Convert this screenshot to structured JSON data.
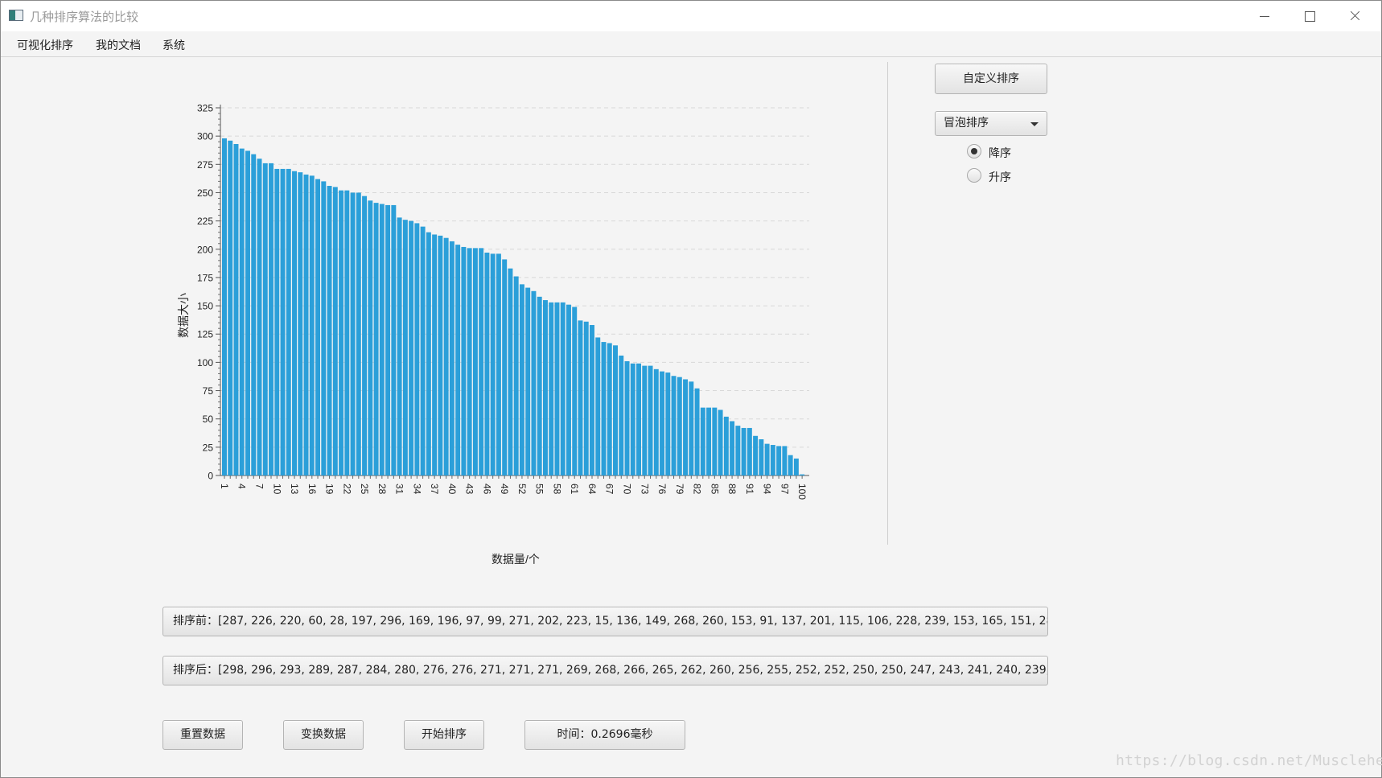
{
  "window": {
    "title": "几种排序算法的比较"
  },
  "menu": [
    "可视化排序",
    "我的文档",
    "系统"
  ],
  "controls": {
    "custom_sort_button": "自定义排序",
    "algorithm": "冒泡排序",
    "order_options": [
      {
        "label": "降序",
        "selected": true
      },
      {
        "label": "升序",
        "selected": false
      }
    ]
  },
  "fields": {
    "before": "排序前：[287, 226, 220, 60, 28, 197, 296, 169, 196, 97, 99, 271, 202, 223, 15, 136, 149, 268, 260, 153, 91, 137, 201, 115, 106, 228, 239, 153, 165, 151, 28...",
    "after": "排序后：[298, 296, 293, 289, 287, 284, 280, 276, 276, 271, 271, 271, 269, 268, 266, 265, 262, 260, 256, 255, 252, 252, 250, 250, 247, 243, 241, 240, 239, ..."
  },
  "actions": {
    "reset": "重置数据",
    "swap": "变换数据",
    "start": "开始排序",
    "time": "时间：0.2696毫秒"
  },
  "watermark": "https://blog.csdn.net/Muscleheng",
  "chart_data": {
    "type": "bar",
    "title": "",
    "xlabel": "数据量/个",
    "ylabel": "数据大小",
    "ylim": [
      0,
      325
    ],
    "yticks": [
      0,
      25,
      50,
      75,
      100,
      125,
      150,
      175,
      200,
      225,
      250,
      275,
      300,
      325
    ],
    "xtick_labels": [
      "1",
      "4",
      "7",
      "10",
      "13",
      "16",
      "19",
      "22",
      "25",
      "28",
      "31",
      "34",
      "37",
      "40",
      "43",
      "46",
      "49",
      "52",
      "55",
      "58",
      "61",
      "64",
      "67",
      "70",
      "73",
      "76",
      "79",
      "82",
      "85",
      "88",
      "91",
      "94",
      "97",
      "100"
    ],
    "grid": "horizontal-dashed",
    "bar_color": "#2b9fd9",
    "categories": [
      1,
      2,
      3,
      4,
      5,
      6,
      7,
      8,
      9,
      10,
      11,
      12,
      13,
      14,
      15,
      16,
      17,
      18,
      19,
      20,
      21,
      22,
      23,
      24,
      25,
      26,
      27,
      28,
      29,
      30,
      31,
      32,
      33,
      34,
      35,
      36,
      37,
      38,
      39,
      40,
      41,
      42,
      43,
      44,
      45,
      46,
      47,
      48,
      49,
      50,
      51,
      52,
      53,
      54,
      55,
      56,
      57,
      58,
      59,
      60,
      61,
      62,
      63,
      64,
      65,
      66,
      67,
      68,
      69,
      70,
      71,
      72,
      73,
      74,
      75,
      76,
      77,
      78,
      79,
      80,
      81,
      82,
      83,
      84,
      85,
      86,
      87,
      88,
      89,
      90,
      91,
      92,
      93,
      94,
      95,
      96,
      97,
      98,
      99,
      100
    ],
    "values": [
      298,
      296,
      293,
      289,
      287,
      284,
      280,
      276,
      276,
      271,
      271,
      271,
      269,
      268,
      266,
      265,
      262,
      260,
      256,
      255,
      252,
      252,
      250,
      250,
      247,
      243,
      241,
      240,
      239,
      239,
      228,
      226,
      225,
      223,
      220,
      215,
      213,
      212,
      210,
      207,
      204,
      202,
      201,
      201,
      201,
      197,
      196,
      196,
      191,
      183,
      176,
      169,
      166,
      163,
      158,
      155,
      153,
      153,
      153,
      151,
      149,
      137,
      136,
      133,
      122,
      118,
      117,
      115,
      106,
      101,
      99,
      99,
      97,
      97,
      94,
      92,
      91,
      88,
      87,
      85,
      83,
      77,
      60,
      60,
      60,
      58,
      52,
      48,
      44,
      42,
      42,
      35,
      32,
      28,
      27,
      26,
      26,
      18,
      15,
      1
    ]
  }
}
